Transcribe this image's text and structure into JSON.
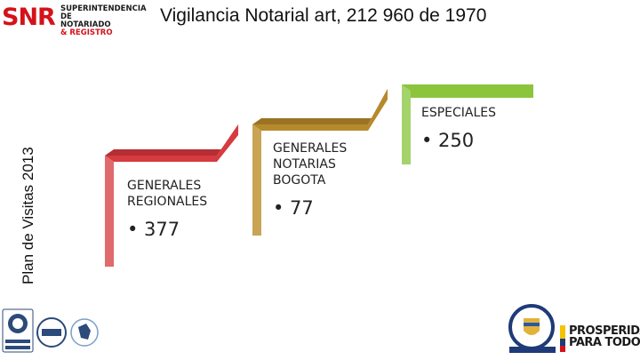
{
  "header": {
    "logo_letters": "SNR",
    "logo_line1": "SUPERINTENDENCIA DE",
    "logo_line2": "NOTARIADO",
    "logo_line3": "& REGISTRO",
    "title": "Vigilancia  Notarial art, 212 960 de 1970"
  },
  "side_title": "Plan de Visitas 2013",
  "segments": [
    {
      "label_lines": [
        "GENERALES",
        "REGIONALES"
      ],
      "value": "• 377",
      "color": "#d63b3f"
    },
    {
      "label_lines": [
        "GENERALES",
        "NOTARIAS",
        "BOGOTA"
      ],
      "value": "• 77",
      "color": "#b68a2c"
    },
    {
      "label_lines": [
        "ESPECIALES"
      ],
      "value": "• 250",
      "color": "#8cc43b"
    }
  ],
  "footer": {
    "prosperidad_line1": "PROSPERIDAD",
    "prosperidad_line2": "PARA TODOS"
  }
}
